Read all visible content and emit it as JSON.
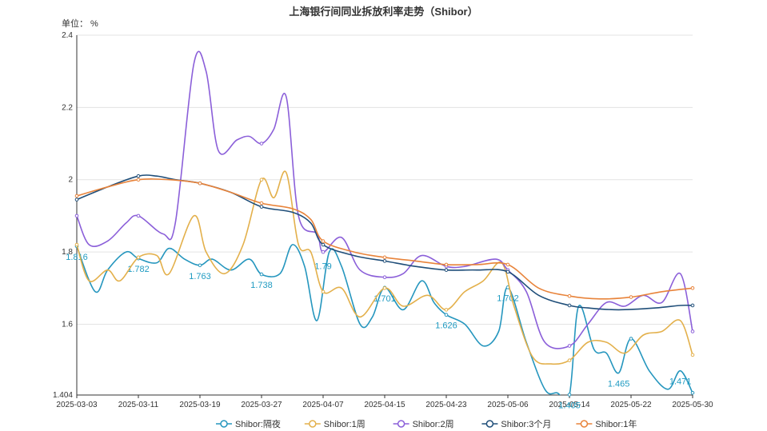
{
  "chart_data": {
    "type": "line",
    "title": "上海银行间同业拆放利率走势（Shibor）",
    "unit_label": "单位： %",
    "x": [
      "2025-03-03",
      "2025-03-11",
      "2025-03-19",
      "2025-03-27",
      "2025-04-07",
      "2025-04-15",
      "2025-04-23",
      "2025-05-06",
      "2025-05-14",
      "2025-05-22",
      "2025-05-30"
    ],
    "ylim": [
      1.404,
      2.4
    ],
    "yticks": [
      "1.404",
      "1.6",
      "1.8",
      "2",
      "2.2",
      "2.4"
    ],
    "ytick_values": [
      1.404,
      1.6,
      1.8,
      2.0,
      2.2,
      2.4
    ],
    "series": [
      {
        "name": "Shibor:隔夜",
        "color": "#2596be",
        "values": [
          [
            0,
            1.816
          ],
          [
            0.3,
            1.69
          ],
          [
            0.5,
            1.75
          ],
          [
            0.8,
            1.8
          ],
          [
            1.0,
            1.782
          ],
          [
            1.3,
            1.77
          ],
          [
            1.5,
            1.81
          ],
          [
            1.75,
            1.78
          ],
          [
            2.0,
            1.763
          ],
          [
            2.2,
            1.78
          ],
          [
            2.5,
            1.75
          ],
          [
            2.8,
            1.78
          ],
          [
            3.0,
            1.738
          ],
          [
            3.3,
            1.74
          ],
          [
            3.5,
            1.82
          ],
          [
            3.7,
            1.76
          ],
          [
            3.9,
            1.61
          ],
          [
            4.1,
            1.8
          ],
          [
            4.3,
            1.76
          ],
          [
            4.6,
            1.6
          ],
          [
            4.8,
            1.62
          ],
          [
            5.0,
            1.701
          ],
          [
            5.3,
            1.64
          ],
          [
            5.6,
            1.72
          ],
          [
            5.8,
            1.66
          ],
          [
            6.0,
            1.626
          ],
          [
            6.3,
            1.6
          ],
          [
            6.6,
            1.54
          ],
          [
            6.85,
            1.58
          ],
          [
            7.0,
            1.702
          ],
          [
            7.3,
            1.55
          ],
          [
            7.6,
            1.42
          ],
          [
            7.8,
            1.41
          ],
          [
            8.0,
            1.405
          ],
          [
            8.15,
            1.65
          ],
          [
            8.4,
            1.53
          ],
          [
            8.6,
            1.52
          ],
          [
            8.8,
            1.465
          ],
          [
            9.0,
            1.56
          ],
          [
            9.3,
            1.47
          ],
          [
            9.6,
            1.42
          ],
          [
            9.8,
            1.471
          ],
          [
            10.0,
            1.41
          ]
        ],
        "labels": [
          [
            0,
            1.816,
            "1.816"
          ],
          [
            1.0,
            1.782,
            "1.782"
          ],
          [
            2.0,
            1.763,
            "1.763"
          ],
          [
            3.0,
            1.738,
            "1.738"
          ],
          [
            4.0,
            1.79,
            "1.79"
          ],
          [
            5.0,
            1.701,
            "1.701"
          ],
          [
            6.0,
            1.626,
            "1.626"
          ],
          [
            7.0,
            1.702,
            "1.702"
          ],
          [
            8.0,
            1.405,
            "1.405"
          ],
          [
            8.8,
            1.465,
            "1.465"
          ],
          [
            9.8,
            1.471,
            "1.471"
          ]
        ]
      },
      {
        "name": "Shibor:1周",
        "color": "#e3b04b",
        "values": [
          [
            0,
            1.82
          ],
          [
            0.2,
            1.72
          ],
          [
            0.5,
            1.75
          ],
          [
            0.7,
            1.72
          ],
          [
            1.0,
            1.785
          ],
          [
            1.3,
            1.79
          ],
          [
            1.5,
            1.74
          ],
          [
            1.9,
            1.9
          ],
          [
            2.1,
            1.8
          ],
          [
            2.4,
            1.74
          ],
          [
            2.7,
            1.82
          ],
          [
            3.0,
            2.0
          ],
          [
            3.2,
            1.95
          ],
          [
            3.4,
            2.02
          ],
          [
            3.6,
            1.82
          ],
          [
            3.8,
            1.8
          ],
          [
            4.0,
            1.69
          ],
          [
            4.3,
            1.7
          ],
          [
            4.6,
            1.62
          ],
          [
            5.0,
            1.7
          ],
          [
            5.3,
            1.65
          ],
          [
            5.7,
            1.68
          ],
          [
            6.0,
            1.64
          ],
          [
            6.3,
            1.69
          ],
          [
            6.6,
            1.72
          ],
          [
            6.9,
            1.77
          ],
          [
            7.1,
            1.65
          ],
          [
            7.4,
            1.51
          ],
          [
            7.7,
            1.49
          ],
          [
            8.0,
            1.5
          ],
          [
            8.3,
            1.55
          ],
          [
            8.6,
            1.55
          ],
          [
            8.9,
            1.52
          ],
          [
            9.2,
            1.57
          ],
          [
            9.5,
            1.58
          ],
          [
            9.8,
            1.61
          ],
          [
            10.0,
            1.515
          ]
        ]
      },
      {
        "name": "Shibor:2周",
        "color": "#8b5fd9",
        "values": [
          [
            0,
            1.9
          ],
          [
            0.2,
            1.82
          ],
          [
            0.5,
            1.83
          ],
          [
            0.8,
            1.88
          ],
          [
            1.0,
            1.9
          ],
          [
            1.4,
            1.85
          ],
          [
            1.6,
            1.88
          ],
          [
            1.9,
            2.32
          ],
          [
            2.1,
            2.3
          ],
          [
            2.3,
            2.08
          ],
          [
            2.6,
            2.11
          ],
          [
            2.8,
            2.12
          ],
          [
            3.0,
            2.1
          ],
          [
            3.2,
            2.14
          ],
          [
            3.4,
            2.23
          ],
          [
            3.6,
            1.9
          ],
          [
            3.9,
            1.85
          ],
          [
            4.0,
            1.8
          ],
          [
            4.3,
            1.84
          ],
          [
            4.6,
            1.75
          ],
          [
            5.0,
            1.73
          ],
          [
            5.3,
            1.74
          ],
          [
            5.6,
            1.79
          ],
          [
            6.0,
            1.76
          ],
          [
            6.3,
            1.76
          ],
          [
            6.8,
            1.78
          ],
          [
            7.0,
            1.75
          ],
          [
            7.3,
            1.69
          ],
          [
            7.6,
            1.55
          ],
          [
            8.0,
            1.54
          ],
          [
            8.3,
            1.6
          ],
          [
            8.6,
            1.66
          ],
          [
            8.9,
            1.65
          ],
          [
            9.2,
            1.68
          ],
          [
            9.5,
            1.66
          ],
          [
            9.8,
            1.74
          ],
          [
            10.0,
            1.58
          ]
        ]
      },
      {
        "name": "Shibor:3个月",
        "color": "#1f4e79",
        "values": [
          [
            0,
            1.945
          ],
          [
            0.5,
            1.98
          ],
          [
            1.0,
            2.01
          ],
          [
            1.3,
            2.01
          ],
          [
            1.6,
            2.0
          ],
          [
            2.0,
            1.99
          ],
          [
            2.5,
            1.965
          ],
          [
            3.0,
            1.925
          ],
          [
            3.5,
            1.91
          ],
          [
            3.8,
            1.88
          ],
          [
            4.0,
            1.82
          ],
          [
            4.5,
            1.79
          ],
          [
            5.0,
            1.775
          ],
          [
            5.5,
            1.76
          ],
          [
            6.0,
            1.75
          ],
          [
            6.5,
            1.75
          ],
          [
            7.0,
            1.745
          ],
          [
            7.5,
            1.68
          ],
          [
            8.0,
            1.652
          ],
          [
            8.3,
            1.645
          ],
          [
            8.8,
            1.64
          ],
          [
            9.4,
            1.645
          ],
          [
            9.8,
            1.652
          ],
          [
            10.0,
            1.652
          ]
        ]
      },
      {
        "name": "Shibor:1年",
        "color": "#e8833a",
        "values": [
          [
            0,
            1.955
          ],
          [
            0.5,
            1.98
          ],
          [
            1.0,
            2.0
          ],
          [
            1.5,
            2.0
          ],
          [
            2.0,
            1.99
          ],
          [
            2.5,
            1.965
          ],
          [
            3.0,
            1.935
          ],
          [
            3.5,
            1.92
          ],
          [
            3.8,
            1.89
          ],
          [
            4.0,
            1.83
          ],
          [
            4.5,
            1.8
          ],
          [
            5.0,
            1.785
          ],
          [
            5.5,
            1.775
          ],
          [
            6.0,
            1.765
          ],
          [
            6.5,
            1.765
          ],
          [
            7.0,
            1.765
          ],
          [
            7.5,
            1.7
          ],
          [
            8.0,
            1.678
          ],
          [
            8.5,
            1.67
          ],
          [
            9.0,
            1.675
          ],
          [
            9.5,
            1.69
          ],
          [
            10.0,
            1.7
          ]
        ]
      }
    ]
  }
}
